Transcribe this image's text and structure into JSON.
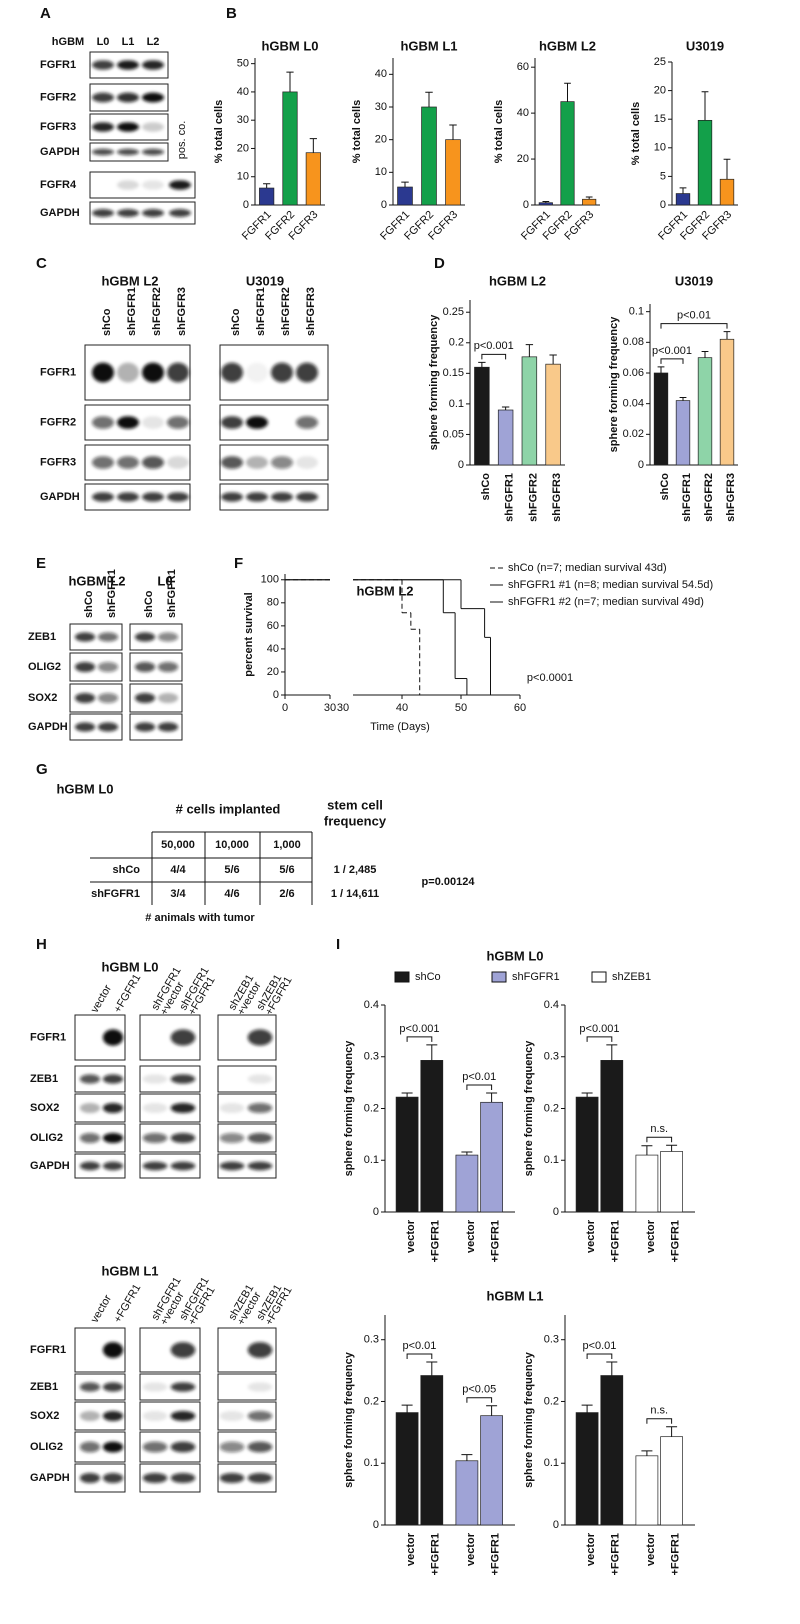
{
  "panel_labels": [
    "A",
    "B",
    "C",
    "D",
    "E",
    "F",
    "G",
    "H",
    "I"
  ],
  "blots": {
    "a": {
      "header": [
        "hGBM",
        "L0",
        "L1",
        "L2"
      ],
      "rows": [
        "FGFR1",
        "FGFR2",
        "FGFR3",
        "GAPDH",
        "FGFR4",
        "GAPDH"
      ],
      "note": "pos. co."
    },
    "c": {
      "groups": [
        {
          "title": "hGBM L2",
          "lanes": [
            "shCo",
            "shFGFR1",
            "shFGFR2",
            "shFGFR3"
          ]
        },
        {
          "title": "U3019",
          "lanes": [
            "shCo",
            "shFGFR1",
            "shFGFR2",
            "shFGFR3"
          ]
        }
      ],
      "rows": [
        "FGFR1",
        "FGFR2",
        "FGFR3",
        "GAPDH"
      ]
    },
    "e": {
      "groups": [
        {
          "title": "hGBM  L2",
          "lanes": [
            "shCo",
            "shFGFR1"
          ]
        },
        {
          "title": "L0",
          "lanes": [
            "shCo",
            "shFGFR1"
          ]
        }
      ],
      "rows": [
        "ZEB1",
        "OLIG2",
        "SOX2",
        "GAPDH"
      ]
    },
    "h": [
      {
        "title": "hGBM L0",
        "lanes": [
          [
            "vector"
          ],
          [
            "+FGFR1"
          ],
          [
            "shFGFR1",
            "+vector"
          ],
          [
            "shFGFR1",
            "+FGFR1"
          ],
          [
            "shZEB1",
            "+vector"
          ],
          [
            "shZEB1",
            "+FGFR1"
          ]
        ],
        "rows": [
          "FGFR1",
          "ZEB1",
          "SOX2",
          "OLIG2",
          "GAPDH"
        ]
      },
      {
        "title": "hGBM L1",
        "lanes": [
          [
            "vector"
          ],
          [
            "+FGFR1"
          ],
          [
            "shFGFR1",
            "+vector"
          ],
          [
            "shFGFR1",
            "+FGFR1"
          ],
          [
            "shZEB1",
            "+vector"
          ],
          [
            "shZEB1",
            "+FGFR1"
          ]
        ],
        "rows": [
          "FGFR1",
          "ZEB1",
          "SOX2",
          "OLIG2",
          "GAPDH"
        ]
      }
    ]
  },
  "table": {
    "title": "hGBM L0",
    "column_group": "# cells implanted",
    "result_header": [
      "stem cell",
      "frequency"
    ],
    "columns": [
      "50,000",
      "10,000",
      "1,000"
    ],
    "rows": [
      {
        "label": "shCo",
        "cells": [
          "4/4",
          "5/6",
          "5/6"
        ],
        "frequency": "1 / 2,485"
      },
      {
        "label": "shFGFR1",
        "cells": [
          "3/4",
          "4/6",
          "2/6"
        ],
        "frequency": "1 / 14,611"
      }
    ],
    "p_value": "p=0.00124",
    "footer": "# animals with tumor"
  },
  "panel_i": {
    "titles": [
      "hGBM L0",
      "hGBM L1"
    ],
    "legend": [
      {
        "name": "shCo",
        "color": "#1a1a1a"
      },
      {
        "name": "shFGFR1",
        "color": "#9fa3d6"
      },
      {
        "name": "shZEB1",
        "color": "#ffffff"
      }
    ]
  },
  "chart_data": [
    {
      "type": "bar",
      "title": "hGBM L0",
      "y_label": "% total cells",
      "categories": [
        "FGFR1",
        "FGFR2",
        "FGFR3"
      ],
      "values": [
        6,
        40,
        18.5
      ],
      "errors": [
        1.5,
        7,
        5
      ],
      "colors": [
        "#2b3990",
        "#13a04a",
        "#f7941d"
      ],
      "ylim": [
        0,
        52
      ],
      "yticks": [
        0,
        10,
        20,
        30,
        40,
        50
      ]
    },
    {
      "type": "bar",
      "title": "hGBM L1",
      "y_label": "% total cells",
      "categories": [
        "FGFR1",
        "FGFR2",
        "FGFR3"
      ],
      "values": [
        5.5,
        30,
        20
      ],
      "errors": [
        1.5,
        4.5,
        4.5
      ],
      "colors": [
        "#2b3990",
        "#13a04a",
        "#f7941d"
      ],
      "ylim": [
        0,
        45
      ],
      "yticks": [
        0,
        10,
        20,
        30,
        40
      ]
    },
    {
      "type": "bar",
      "title": "hGBM L2",
      "y_label": "% total cells",
      "categories": [
        "FGFR1",
        "FGFR2",
        "FGFR3"
      ],
      "values": [
        1,
        45,
        2.5
      ],
      "errors": [
        0.5,
        8,
        1
      ],
      "colors": [
        "#2b3990",
        "#13a04a",
        "#f7941d"
      ],
      "ylim": [
        0,
        64
      ],
      "yticks": [
        0,
        20,
        40,
        60
      ]
    },
    {
      "type": "bar",
      "title": "U3019",
      "y_label": "% total cells",
      "categories": [
        "FGFR1",
        "FGFR2",
        "FGFR3"
      ],
      "values": [
        2,
        14.8,
        4.5
      ],
      "errors": [
        1,
        5,
        3.5
      ],
      "colors": [
        "#2b3990",
        "#13a04a",
        "#f7941d"
      ],
      "ylim": [
        0,
        25
      ],
      "yticks": [
        0,
        5,
        10,
        15,
        20,
        25
      ]
    },
    {
      "type": "bar",
      "title": "hGBM L2",
      "y_label": "sphere forming frequency",
      "categories": [
        "shCo",
        "shFGFR1",
        "shFGFR2",
        "shFGFR3"
      ],
      "values": [
        0.16,
        0.09,
        0.177,
        0.165
      ],
      "errors": [
        0.008,
        0.005,
        0.02,
        0.015
      ],
      "colors": [
        "#1a1a1a",
        "#9fa3d6",
        "#8ed4a8",
        "#f9c98a"
      ],
      "ylim": [
        0,
        0.27
      ],
      "yticks": [
        0,
        0.05,
        0.1,
        0.15,
        0.2,
        0.25
      ],
      "annotations": [
        {
          "text": "p<0.001",
          "pair": [
            0,
            1
          ]
        }
      ]
    },
    {
      "type": "bar",
      "title": "U3019",
      "y_label": "sphere forming frequency",
      "categories": [
        "shCo",
        "shFGFR1",
        "shFGFR2",
        "shFGFR3"
      ],
      "values": [
        0.06,
        0.042,
        0.07,
        0.082
      ],
      "errors": [
        0.004,
        0.002,
        0.004,
        0.005
      ],
      "colors": [
        "#1a1a1a",
        "#9fa3d6",
        "#8ed4a8",
        "#f9c98a"
      ],
      "ylim": [
        0,
        0.105
      ],
      "yticks": [
        0,
        0.02,
        0.04,
        0.06,
        0.08,
        0.1
      ],
      "annotations": [
        {
          "text": "p<0.001",
          "pair": [
            0,
            1
          ]
        },
        {
          "text": "p<0.01",
          "pair": [
            0,
            3
          ]
        }
      ]
    },
    {
      "type": "survival",
      "title": "hGBM L2",
      "x_label": "Time (Days)",
      "y_label": "percent survival",
      "xlim": [
        0,
        30
      ],
      "xticks": [
        0,
        30
      ],
      "x2lim": [
        30,
        60
      ],
      "x2ticks": [
        30,
        40,
        50,
        60
      ],
      "ylim": [
        0,
        105
      ],
      "yticks": [
        0,
        20,
        40,
        60,
        80,
        100
      ],
      "series": [
        {
          "name": "shCo (n=7; median survival 43d)",
          "color": "#000000",
          "dash": true,
          "x": [
            0,
            40,
            41.5,
            43
          ],
          "y": [
            100,
            71.4,
            57.1,
            0
          ]
        },
        {
          "name": "shFGFR1 #1 (n=8; median survival 54.5d)",
          "color": "#1b1f8a",
          "dash": false,
          "x": [
            0,
            50,
            54,
            55
          ],
          "y": [
            100,
            75,
            50,
            0
          ]
        },
        {
          "name": "shFGFR1 #2 (n=7; median survival 49d)",
          "color": "#7c80c8",
          "dash": false,
          "x": [
            0,
            47,
            49,
            51
          ],
          "y": [
            100,
            71.4,
            14.3,
            0
          ]
        }
      ],
      "annotation": "p<0.0001"
    },
    {
      "type": "bar",
      "y_label": "sphere forming frequency",
      "categories": [
        "vector",
        "+FGFR1",
        "vector",
        "+FGFR1"
      ],
      "series": [
        {
          "color": "#1a1a1a",
          "values": [
            0.222,
            0.293,
            null,
            null
          ],
          "errors": [
            0.008,
            0.03,
            null,
            null
          ]
        },
        {
          "color": "#9fa3d6",
          "values": [
            null,
            null,
            0.11,
            0.212
          ],
          "errors": [
            null,
            null,
            0.006,
            0.018
          ]
        }
      ],
      "ylim": [
        0,
        0.4
      ],
      "yticks": [
        0,
        0.1,
        0.2,
        0.3,
        0.4
      ],
      "annotations": [
        {
          "text": "p<0.001",
          "pair": [
            0,
            1
          ]
        },
        {
          "text": "p<0.01",
          "pair": [
            2,
            3
          ]
        }
      ]
    },
    {
      "type": "bar",
      "y_label": "sphere forming frequency",
      "categories": [
        "vector",
        "+FGFR1",
        "vector",
        "+FGFR1"
      ],
      "series": [
        {
          "color": "#1a1a1a",
          "values": [
            0.222,
            0.293,
            null,
            null
          ],
          "errors": [
            0.008,
            0.03,
            null,
            null
          ]
        },
        {
          "color": "#ffffff",
          "values": [
            null,
            null,
            0.11,
            0.117
          ],
          "errors": [
            null,
            null,
            0.018,
            0.012
          ]
        }
      ],
      "ylim": [
        0,
        0.4
      ],
      "yticks": [
        0,
        0.1,
        0.2,
        0.3,
        0.4
      ],
      "annotations": [
        {
          "text": "p<0.001",
          "pair": [
            0,
            1
          ]
        },
        {
          "text": "n.s.",
          "pair": [
            2,
            3
          ]
        }
      ]
    },
    {
      "type": "bar",
      "y_label": "sphere forming frequency",
      "categories": [
        "vector",
        "+FGFR1",
        "vector",
        "+FGFR1"
      ],
      "series": [
        {
          "color": "#1a1a1a",
          "values": [
            0.182,
            0.242,
            null,
            null
          ],
          "errors": [
            0.012,
            0.022,
            null,
            null
          ]
        },
        {
          "color": "#9fa3d6",
          "values": [
            null,
            null,
            0.104,
            0.177
          ],
          "errors": [
            null,
            null,
            0.01,
            0.016
          ]
        }
      ],
      "ylim": [
        0,
        0.34
      ],
      "yticks": [
        0,
        0.1,
        0.2,
        0.3
      ],
      "annotations": [
        {
          "text": "p<0.01",
          "pair": [
            0,
            1
          ]
        },
        {
          "text": "p<0.05",
          "pair": [
            2,
            3
          ]
        }
      ]
    },
    {
      "type": "bar",
      "y_label": "sphere forming frequency",
      "categories": [
        "vector",
        "+FGFR1",
        "vector",
        "+FGFR1"
      ],
      "series": [
        {
          "color": "#1a1a1a",
          "values": [
            0.182,
            0.242,
            null,
            null
          ],
          "errors": [
            0.012,
            0.022,
            null,
            null
          ]
        },
        {
          "color": "#ffffff",
          "values": [
            null,
            null,
            0.112,
            0.143
          ],
          "errors": [
            null,
            null,
            0.008,
            0.016
          ]
        }
      ],
      "ylim": [
        0,
        0.34
      ],
      "yticks": [
        0,
        0.1,
        0.2,
        0.3
      ],
      "annotations": [
        {
          "text": "p<0.01",
          "pair": [
            0,
            1
          ]
        },
        {
          "text": "n.s.",
          "pair": [
            2,
            3
          ]
        }
      ]
    }
  ]
}
